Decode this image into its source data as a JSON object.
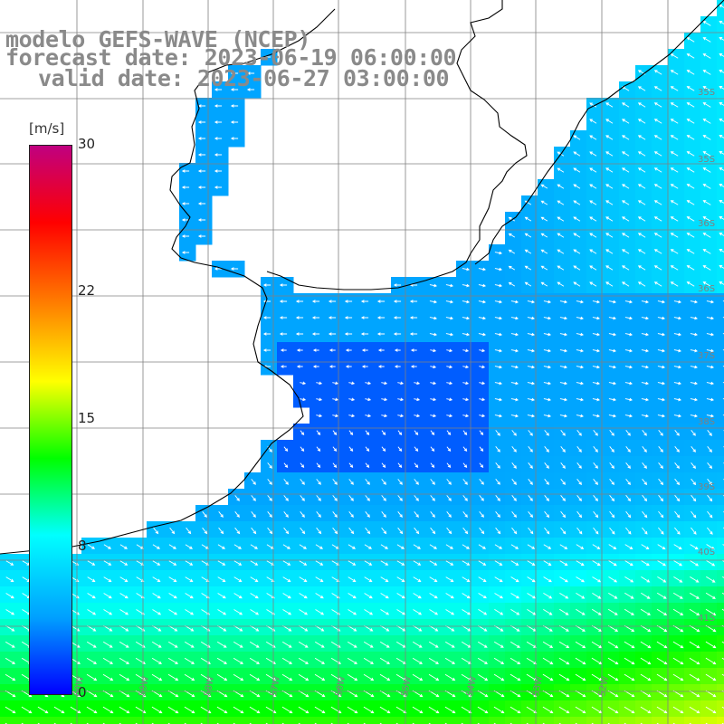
{
  "titles": {
    "line1": "modelo GEFS-WAVE (NCEP)",
    "line2": "forecast date: 2023-06-19 06:00:00",
    "line3": "valid date: 2023-06-27 03:00:00"
  },
  "colorbar": {
    "unit": "[m/s]",
    "ticks": [
      "30",
      "22",
      "15",
      "8",
      "0"
    ],
    "tick_values": [
      30,
      22,
      15,
      8,
      0
    ],
    "range": [
      0,
      30
    ],
    "colors": [
      "#0000ff",
      "#00a0ff",
      "#00ffff",
      "#00ff00",
      "#ffff00",
      "#ff8000",
      "#ff0000",
      "#c00080"
    ]
  },
  "map": {
    "lat_labels": [
      "35S",
      "35S",
      "36S",
      "36S",
      "37S",
      "38S",
      "39S",
      "40S",
      "41S"
    ],
    "lon_labels": [
      "60W",
      "59W",
      "58W",
      "57W",
      "56W",
      "55W",
      "54W",
      "53W",
      "52W"
    ],
    "land_color": "#ffffff",
    "grid_color": "#808080",
    "coast_color": "#000000"
  }
}
